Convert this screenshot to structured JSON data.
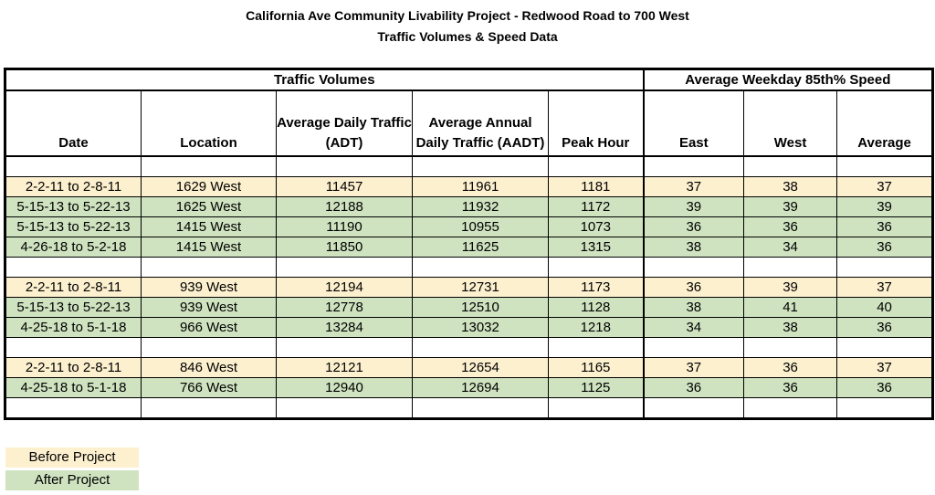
{
  "title_line1": "California Ave Community Livability Project - Redwood Road to 700 West",
  "title_line2": "Traffic Volumes & Speed Data",
  "group_headers": {
    "traffic_volumes": "Traffic Volumes",
    "speed": "Average Weekday 85th% Speed"
  },
  "columns": {
    "date": "Date",
    "location": "Location",
    "adt": "Average Daily Traffic (ADT)",
    "aadt": "Average Annual Daily Traffic (AADT)",
    "peak": "Peak Hour",
    "east": "East",
    "west": "West",
    "average": "Average"
  },
  "rows": [
    {
      "date": "2-2-11 to 2-8-11",
      "location": "1629 West",
      "adt": "11457",
      "aadt": "11961",
      "peak": "1181",
      "east": "37",
      "west": "38",
      "average": "37"
    },
    {
      "date": "5-15-13 to 5-22-13",
      "location": "1625 West",
      "adt": "12188",
      "aadt": "11932",
      "peak": "1172",
      "east": "39",
      "west": "39",
      "average": "39"
    },
    {
      "date": "5-15-13 to 5-22-13",
      "location": "1415 West",
      "adt": "11190",
      "aadt": "10955",
      "peak": "1073",
      "east": "36",
      "west": "36",
      "average": "36"
    },
    {
      "date": "4-26-18 to 5-2-18",
      "location": "1415 West",
      "adt": "11850",
      "aadt": "11625",
      "peak": "1315",
      "east": "38",
      "west": "34",
      "average": "36"
    },
    {
      "date": "2-2-11 to 2-8-11",
      "location": "939 West",
      "adt": "12194",
      "aadt": "12731",
      "peak": "1173",
      "east": "36",
      "west": "39",
      "average": "37"
    },
    {
      "date": "5-15-13 to 5-22-13",
      "location": "939 West",
      "adt": "12778",
      "aadt": "12510",
      "peak": "1128",
      "east": "38",
      "west": "41",
      "average": "40"
    },
    {
      "date": "4-25-18 to 5-1-18",
      "location": "966 West",
      "adt": "13284",
      "aadt": "13032",
      "peak": "1218",
      "east": "34",
      "west": "38",
      "average": "36"
    },
    {
      "date": "2-2-11 to 2-8-11",
      "location": "846 West",
      "adt": "12121",
      "aadt": "12654",
      "peak": "1165",
      "east": "37",
      "west": "36",
      "average": "37"
    },
    {
      "date": "4-25-18 to 5-1-18",
      "location": "766 West",
      "adt": "12940",
      "aadt": "12694",
      "peak": "1125",
      "east": "36",
      "west": "36",
      "average": "36"
    }
  ],
  "legend": {
    "before": "Before Project",
    "after": "After Project",
    "before_color": "#fdf0cf",
    "after_color": "#cfe3c0"
  }
}
